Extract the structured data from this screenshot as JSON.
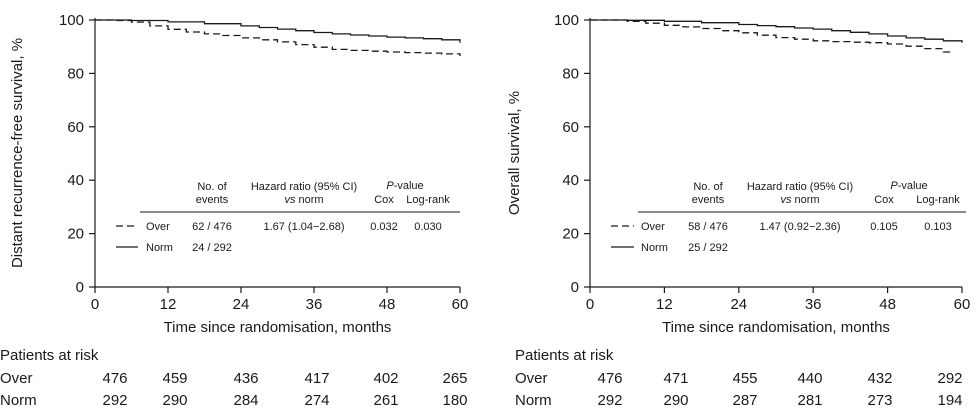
{
  "chart_data": [
    {
      "type": "line",
      "xlabel": "Time since randomisation, months",
      "ylabel": "Distant recurrence-free survival, %",
      "xlim": [
        0,
        60
      ],
      "ylim": [
        0,
        100
      ],
      "xticks": [
        "0",
        "12",
        "24",
        "36",
        "48",
        "60"
      ],
      "yticks": [
        "0",
        "20",
        "40",
        "60",
        "80",
        "100"
      ],
      "series": [
        {
          "name": "Over",
          "style": "dashed",
          "x": [
            0,
            3,
            6,
            9,
            12,
            15,
            18,
            21,
            24,
            27,
            30,
            33,
            36,
            39,
            42,
            45,
            48,
            51,
            54,
            57,
            60
          ],
          "y": [
            100,
            99.8,
            99.2,
            97.8,
            96.5,
            95.5,
            94.8,
            94.2,
            93.3,
            92.6,
            91.8,
            90.8,
            89.8,
            89.0,
            88.6,
            88.3,
            88.0,
            87.8,
            87.6,
            87.3,
            86.5
          ]
        },
        {
          "name": "Norm",
          "style": "solid",
          "x": [
            0,
            6,
            12,
            18,
            24,
            27,
            30,
            33,
            36,
            39,
            42,
            45,
            48,
            51,
            54,
            57,
            60
          ],
          "y": [
            100,
            99.8,
            99.3,
            98.6,
            97.8,
            97.2,
            96.6,
            96.0,
            95.3,
            94.8,
            94.4,
            94.0,
            93.6,
            93.3,
            93.0,
            92.6,
            91.5
          ]
        }
      ],
      "table": {
        "headers": {
          "events": "No. of events",
          "hr_1": "Hazard ratio (95% CI)",
          "hr_vs": "vs",
          "hr_norm": "norm",
          "pval_p": "P",
          "pval_rest": "-value",
          "cox": "Cox",
          "logrank": "Log-rank"
        },
        "rows": [
          {
            "label": "Over",
            "events": "62 / 476",
            "hr": "1.67 (1.04−2.68)",
            "cox": "0.032",
            "logrank": "0.030"
          },
          {
            "label": "Norm",
            "events": "24 / 292",
            "hr": "",
            "cox": "",
            "logrank": ""
          }
        ]
      },
      "at_risk": {
        "title": "Patients at risk",
        "rows": [
          {
            "label": "Over",
            "values": [
              "476",
              "459",
              "436",
              "417",
              "402",
              "265"
            ]
          },
          {
            "label": "Norm",
            "values": [
              "292",
              "290",
              "284",
              "274",
              "261",
              "180"
            ]
          }
        ]
      }
    },
    {
      "type": "line",
      "xlabel": "Time since randomisation, months",
      "ylabel": "Overall survival, %",
      "xlim": [
        0,
        60
      ],
      "ylim": [
        0,
        100
      ],
      "xticks": [
        "0",
        "12",
        "24",
        "36",
        "48",
        "60"
      ],
      "yticks": [
        "0",
        "20",
        "40",
        "60",
        "80",
        "100"
      ],
      "series": [
        {
          "name": "Over",
          "style": "dashed",
          "x": [
            0,
            6,
            9,
            12,
            15,
            18,
            21,
            24,
            27,
            30,
            33,
            36,
            39,
            42,
            45,
            48,
            51,
            54,
            57,
            58
          ],
          "y": [
            100,
            99.5,
            98.8,
            98.0,
            97.4,
            96.8,
            96.0,
            95.2,
            94.3,
            93.4,
            92.8,
            92.2,
            91.9,
            91.7,
            91.5,
            91.0,
            90.2,
            89.3,
            88.0,
            87.3
          ]
        },
        {
          "name": "Norm",
          "style": "solid",
          "x": [
            0,
            6,
            12,
            18,
            24,
            27,
            30,
            33,
            36,
            39,
            42,
            45,
            48,
            51,
            54,
            57,
            60
          ],
          "y": [
            100,
            99.9,
            99.5,
            99.0,
            98.3,
            97.9,
            97.5,
            97.0,
            96.6,
            96.0,
            95.4,
            94.8,
            94.0,
            93.3,
            92.8,
            92.2,
            91.5
          ]
        }
      ],
      "table": {
        "headers": {
          "events": "No. of events",
          "hr_1": "Hazard ratio (95% CI)",
          "hr_vs": "vs",
          "hr_norm": "norm",
          "pval_p": "P",
          "pval_rest": "-value",
          "cox": "Cox",
          "logrank": "Log-rank"
        },
        "rows": [
          {
            "label": "Over",
            "events": "58 / 476",
            "hr": "1.47 (0.92−2.36)",
            "cox": "0.105",
            "logrank": "0.103"
          },
          {
            "label": "Norm",
            "events": "25 / 292",
            "hr": "",
            "cox": "",
            "logrank": ""
          }
        ]
      },
      "at_risk": {
        "title": "Patients at risk",
        "rows": [
          {
            "label": "Over",
            "values": [
              "476",
              "471",
              "455",
              "440",
              "432",
              "292"
            ]
          },
          {
            "label": "Norm",
            "values": [
              "292",
              "290",
              "287",
              "281",
              "273",
              "194"
            ]
          }
        ]
      }
    }
  ]
}
